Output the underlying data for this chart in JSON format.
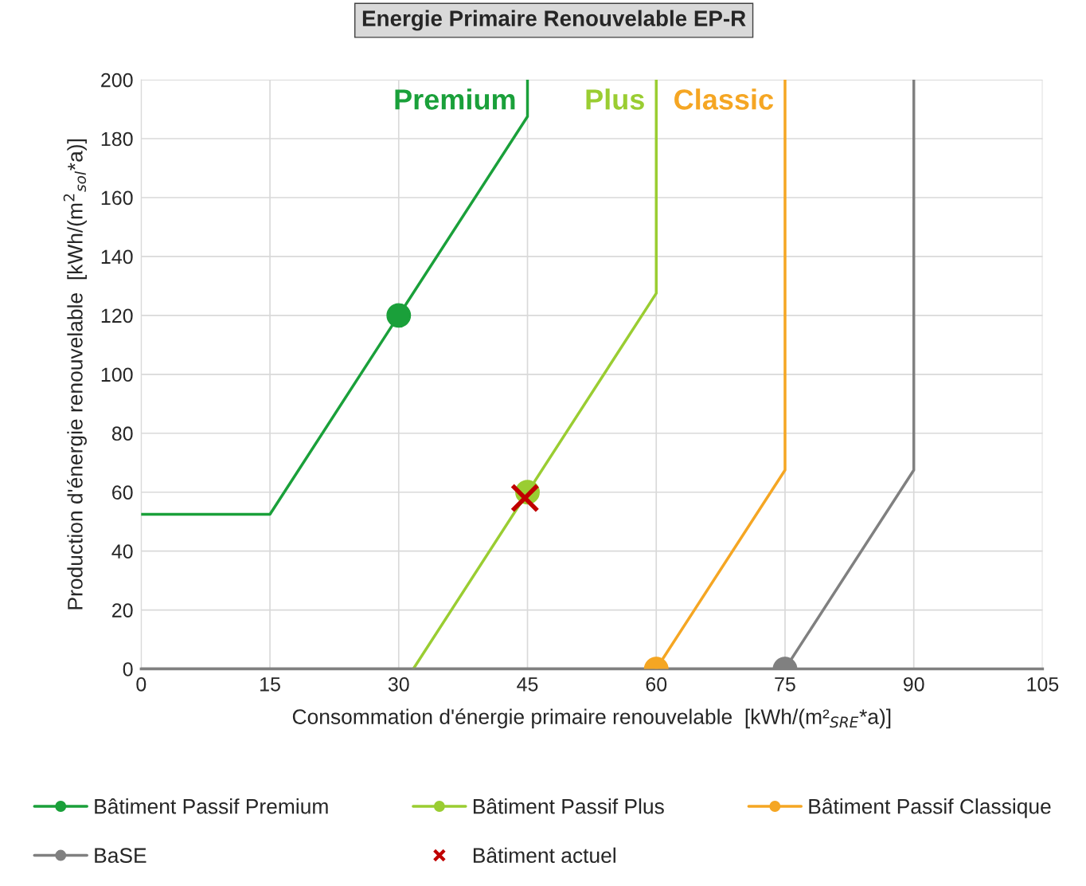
{
  "chart_data": {
    "type": "line",
    "title": "Energie Primaire Renouvelable EP-R",
    "xlabel": "Consommation d'énergie primaire renouvelable  [kWh/(m²$_{SRE}$*a)]",
    "ylabel": "Production d'énergie renouvelable  [kWh/(m$^{2}$$_{sol}$*a)]",
    "series": [
      {
        "name": "Bâtiment Passif Premium",
        "color": "#1aa03a",
        "x": [
          0,
          15,
          45,
          45
        ],
        "values": [
          52.5,
          52.5,
          187.5,
          200
        ]
      },
      {
        "name": "Bâtiment Passif Plus",
        "color": "#9acd32",
        "x": [
          31.7,
          60,
          60
        ],
        "values": [
          0,
          127.5,
          200
        ]
      },
      {
        "name": "Bâtiment Passif Classique",
        "color": "#f5a623",
        "x": [
          60,
          75,
          75
        ],
        "values": [
          0,
          67.5,
          200
        ]
      },
      {
        "name": "BaSE",
        "color": "#808080",
        "x": [
          0,
          75,
          90,
          90
        ],
        "values": [
          0,
          0,
          67.5,
          200
        ]
      },
      {
        "color": "#1aa03a",
        "type": "scatter",
        "marker": "circle",
        "x": [
          30
        ],
        "values": [
          120
        ]
      },
      {
        "color": "#9acd32",
        "type": "scatter",
        "marker": "circle",
        "x": [
          45
        ],
        "values": [
          60
        ]
      },
      {
        "color": "#f5a623",
        "type": "scatter",
        "marker": "circle",
        "x": [
          60
        ],
        "values": [
          0
        ]
      },
      {
        "color": "#808080",
        "type": "scatter",
        "marker": "circle",
        "x": [
          75
        ],
        "values": [
          0
        ]
      },
      {
        "name": "Bâtiment actuel",
        "color": "#c00000",
        "type": "scatter",
        "marker": "cross",
        "x": [
          44.7
        ],
        "values": [
          58
        ]
      }
    ],
    "annotations": [
      "Premium",
      "Plus",
      "Classic"
    ],
    "xlim": [
      0,
      105
    ],
    "xticks": [
      0,
      15,
      30,
      45,
      60,
      75,
      90,
      105
    ],
    "ylim": [
      0,
      200
    ],
    "yticks": [
      0,
      20,
      40,
      60,
      80,
      100,
      120,
      140,
      160,
      180,
      200
    ],
    "grid": true,
    "legend": "bottom"
  }
}
